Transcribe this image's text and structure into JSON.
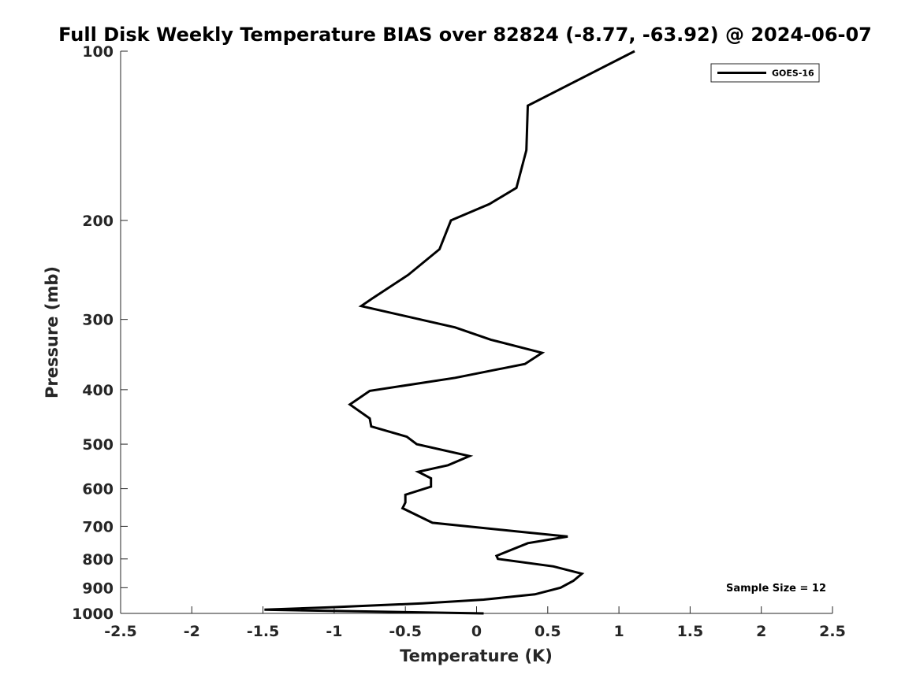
{
  "chart_data": {
    "type": "line",
    "title": "Full Disk Weekly Temperature BIAS over 82824 (-8.77, -63.92) @ 2024-06-07",
    "xlabel": "Temperature (K)",
    "ylabel": "Pressure (mb)",
    "xlim": [
      -2.5,
      2.5
    ],
    "ylim": [
      100,
      1000
    ],
    "y_scale": "log",
    "y_reversed": true,
    "grid": false,
    "legend_position": "top-right",
    "x_ticks": [
      -2.5,
      -2,
      -1.5,
      -1,
      -0.5,
      0,
      0.5,
      1,
      1.5,
      2,
      2.5
    ],
    "x_tick_labels": [
      "-2.5",
      "-2",
      "-1.5",
      "-1",
      "-0.5",
      "0",
      "0.5",
      "1",
      "1.5",
      "2",
      "2.5"
    ],
    "y_ticks": [
      100,
      200,
      300,
      400,
      500,
      600,
      700,
      800,
      900,
      1000
    ],
    "y_tick_labels": [
      "100",
      "200",
      "300",
      "400",
      "500",
      "600",
      "700",
      "800",
      "900",
      "1000"
    ],
    "series": [
      {
        "name": "GOES-16",
        "color": "#000000",
        "points": [
          [
            1.11,
            100
          ],
          [
            0.36,
            125
          ],
          [
            0.35,
            150
          ],
          [
            0.28,
            175
          ],
          [
            0.09,
            187
          ],
          [
            -0.18,
            200
          ],
          [
            -0.26,
            225
          ],
          [
            -0.48,
            250
          ],
          [
            -0.73,
            275
          ],
          [
            -0.81,
            284
          ],
          [
            -0.15,
            310
          ],
          [
            0.1,
            326
          ],
          [
            0.46,
            344
          ],
          [
            0.34,
            360
          ],
          [
            -0.15,
            381
          ],
          [
            -0.75,
            402
          ],
          [
            -0.89,
            425
          ],
          [
            -0.75,
            450
          ],
          [
            -0.74,
            465
          ],
          [
            -0.49,
            485
          ],
          [
            -0.42,
            500
          ],
          [
            -0.05,
            525
          ],
          [
            -0.2,
            545
          ],
          [
            -0.41,
            560
          ],
          [
            -0.32,
            575
          ],
          [
            -0.32,
            595
          ],
          [
            -0.5,
            615
          ],
          [
            -0.5,
            635
          ],
          [
            -0.52,
            650
          ],
          [
            -0.31,
            690
          ],
          [
            0.29,
            715
          ],
          [
            0.64,
            730
          ],
          [
            0.36,
            750
          ],
          [
            0.14,
            790
          ],
          [
            0.15,
            800
          ],
          [
            0.54,
            825
          ],
          [
            0.74,
            850
          ],
          [
            0.68,
            875
          ],
          [
            0.59,
            900
          ],
          [
            0.41,
            925
          ],
          [
            0.05,
            945
          ],
          [
            -0.38,
            960
          ],
          [
            -1.01,
            975
          ],
          [
            -1.49,
            985
          ],
          [
            0.05,
            1000
          ]
        ]
      }
    ],
    "annotation": "Sample Size = 12"
  }
}
